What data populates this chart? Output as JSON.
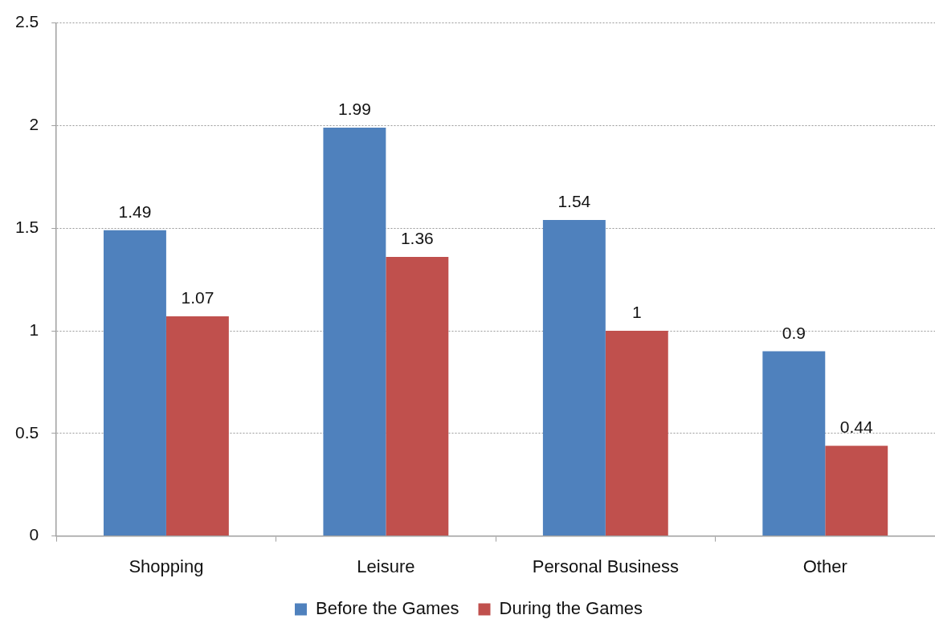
{
  "chart_data": {
    "type": "bar",
    "categories": [
      "Shopping",
      "Leisure",
      "Personal Business",
      "Other"
    ],
    "series": [
      {
        "name": "Before the Games",
        "color": "#4f81bd",
        "values": [
          1.49,
          1.99,
          1.54,
          0.9
        ]
      },
      {
        "name": "During the Games",
        "color": "#c0504d",
        "values": [
          1.07,
          1.36,
          1,
          0.44
        ]
      }
    ],
    "ylim": [
      0,
      2.5
    ],
    "yticks": [
      0,
      0.5,
      1,
      1.5,
      2,
      2.5
    ],
    "grid": "y",
    "legend": "bottom",
    "data_labels": true
  }
}
